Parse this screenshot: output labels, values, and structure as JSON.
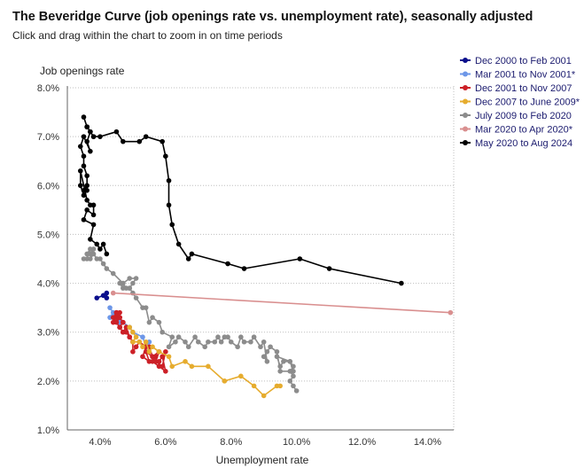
{
  "header": {
    "title": "The Beveridge Curve (job openings rate vs. unemployment rate), seasonally adjusted",
    "subtitle": "Click and drag within the chart to zoom in on time periods"
  },
  "chart_data": {
    "type": "scatter",
    "title": "The Beveridge Curve (job openings rate vs. unemployment rate), seasonally adjusted",
    "subtitle": "Click and drag within the chart to zoom in on time periods",
    "xlabel": "Unemployment rate",
    "ylabel": "Job openings rate",
    "xlim": [
      3.0,
      14.8
    ],
    "ylim": [
      1.0,
      8.0
    ],
    "x_ticks": [
      4,
      6,
      8,
      10,
      12,
      14
    ],
    "y_ticks": [
      1,
      2,
      3,
      4,
      5,
      6,
      7,
      8
    ],
    "x_tick_labels": [
      "4.0%",
      "6.0%",
      "8.0%",
      "10.0%",
      "12.0%",
      "14.0%"
    ],
    "y_tick_labels": [
      "1.0%",
      "2.0%",
      "3.0%",
      "4.0%",
      "5.0%",
      "6.0%",
      "7.0%",
      "8.0%"
    ],
    "grid": "horizontal dotted",
    "legend_position": "top-right",
    "connected_points": true,
    "series": [
      {
        "name": "Dec 2000 to Feb 2001",
        "color": "#0b0f8c",
        "x": [
          3.9,
          4.1,
          4.2,
          4.2
        ],
        "y": [
          3.7,
          3.75,
          3.8,
          3.7
        ]
      },
      {
        "name": "Mar 2001 to Nov 2001*",
        "color": "#6d97e8",
        "x": [
          4.3,
          4.4,
          4.3,
          4.5,
          4.6,
          4.5,
          4.7,
          4.9,
          5.0,
          5.3,
          5.4,
          5.5
        ],
        "y": [
          3.5,
          3.4,
          3.3,
          3.3,
          3.2,
          3.4,
          3.2,
          3.1,
          3.0,
          2.9,
          2.7,
          2.8
        ]
      },
      {
        "name": "Dec 2001 to Nov 2007",
        "color": "#cc2027",
        "x": [
          5.7,
          5.6,
          5.8,
          6.0,
          5.9,
          5.8,
          6.0,
          5.9,
          5.7,
          5.8,
          5.6,
          5.5,
          5.6,
          5.4,
          5.5,
          5.3,
          5.4,
          5.2,
          5.1,
          5.0,
          5.0,
          4.9,
          4.8,
          4.9,
          4.8,
          4.7,
          4.6,
          4.7,
          4.6,
          4.5,
          4.6,
          4.5,
          4.4,
          4.5,
          4.6,
          4.7,
          4.6,
          4.4,
          4.5,
          4.6,
          4.7,
          4.6,
          4.7,
          4.8
        ],
        "y": [
          2.5,
          2.4,
          2.3,
          2.2,
          2.5,
          2.4,
          2.6,
          2.3,
          2.4,
          2.6,
          2.5,
          2.7,
          2.5,
          2.6,
          2.4,
          2.5,
          2.7,
          2.8,
          2.7,
          2.6,
          2.8,
          2.9,
          3.0,
          2.9,
          3.1,
          3.0,
          3.1,
          3.2,
          3.3,
          3.2,
          3.4,
          3.3,
          3.2,
          3.4,
          3.3,
          3.2,
          3.1,
          3.3,
          3.4,
          3.3,
          3.2,
          3.1,
          3.0,
          3.1
        ]
      },
      {
        "name": "Dec 2007 to June 2009*",
        "color": "#e6ac2e",
        "x": [
          4.9,
          5.0,
          5.1,
          5.0,
          5.2,
          5.3,
          5.4,
          5.5,
          5.6,
          5.8,
          6.1,
          6.2,
          6.6,
          6.8,
          7.3,
          7.8,
          8.3,
          8.7,
          9.0,
          9.4,
          9.5
        ],
        "y": [
          3.1,
          3.0,
          2.9,
          2.8,
          2.8,
          2.7,
          2.8,
          2.6,
          2.7,
          2.6,
          2.5,
          2.3,
          2.4,
          2.3,
          2.3,
          2.0,
          2.1,
          1.9,
          1.7,
          1.9,
          1.9
        ]
      },
      {
        "name": "July 2009 to Feb 2020",
        "color": "#8c8c8c",
        "x": [
          10.0,
          9.9,
          9.8,
          9.9,
          9.8,
          9.9,
          9.8,
          9.6,
          9.5,
          9.4,
          9.8,
          9.9,
          9.5,
          9.4,
          9.2,
          9.1,
          9.0,
          9.1,
          9.0,
          8.9,
          8.7,
          8.6,
          8.4,
          8.3,
          8.2,
          8.0,
          7.9,
          7.8,
          7.7,
          7.6,
          7.5,
          7.3,
          7.2,
          7.0,
          6.9,
          6.7,
          6.6,
          6.4,
          6.3,
          6.1,
          6.2,
          5.9,
          5.8,
          5.6,
          5.5,
          5.4,
          5.3,
          5.1,
          5.0,
          4.9,
          4.8,
          4.7,
          4.6,
          4.7,
          4.9,
          5.0,
          5.1,
          4.9,
          4.7,
          4.4,
          4.2,
          4.1,
          4.0,
          3.9,
          3.8,
          3.7,
          3.8,
          3.7,
          3.6,
          3.7,
          3.6,
          3.5
        ],
        "y": [
          1.8,
          1.9,
          2.0,
          2.1,
          2.2,
          2.3,
          2.4,
          2.4,
          2.3,
          2.5,
          2.4,
          2.2,
          2.2,
          2.6,
          2.7,
          2.6,
          2.5,
          2.4,
          2.8,
          2.7,
          2.9,
          2.8,
          2.8,
          2.9,
          2.7,
          2.8,
          2.9,
          2.9,
          2.8,
          2.9,
          2.8,
          2.8,
          2.7,
          2.8,
          2.9,
          2.7,
          2.8,
          2.9,
          2.8,
          2.7,
          2.9,
          3.0,
          3.2,
          3.3,
          3.2,
          3.5,
          3.5,
          3.7,
          3.8,
          3.9,
          3.9,
          4.0,
          4.0,
          3.9,
          3.9,
          4.0,
          4.1,
          4.1,
          4.0,
          4.2,
          4.3,
          4.4,
          4.5,
          4.5,
          4.6,
          4.5,
          4.7,
          4.6,
          4.6,
          4.7,
          4.5,
          4.5
        ]
      },
      {
        "name": "Mar 2020 to Apr 2020*",
        "color": "#d98f8f",
        "x": [
          4.4,
          14.7
        ],
        "y": [
          3.8,
          3.4
        ]
      },
      {
        "name": "May 2020 to Aug 2024",
        "color": "#000000",
        "x": [
          13.2,
          11.0,
          10.1,
          8.4,
          7.9,
          6.8,
          6.7,
          6.4,
          6.2,
          6.1,
          6.1,
          6.0,
          5.9,
          5.4,
          5.2,
          4.7,
          4.5,
          4.0,
          3.8,
          3.7,
          3.6,
          3.6,
          3.5,
          3.6,
          3.8,
          3.7,
          3.6,
          3.7,
          3.5,
          3.4,
          3.5,
          3.5,
          3.6,
          3.6,
          3.6,
          3.5,
          3.5,
          3.4,
          3.4,
          3.6,
          3.7,
          3.8,
          3.8,
          3.6,
          3.5,
          3.8,
          3.7,
          3.9,
          4.0,
          4.1,
          4.2
        ],
        "y": [
          4.0,
          4.3,
          4.5,
          4.3,
          4.4,
          4.6,
          4.5,
          4.8,
          5.2,
          5.6,
          6.1,
          6.6,
          6.9,
          7.0,
          6.9,
          6.9,
          7.1,
          7.0,
          7.0,
          7.1,
          7.2,
          7.2,
          7.4,
          7.2,
          7.0,
          7.1,
          6.9,
          6.7,
          7.0,
          6.8,
          6.6,
          6.4,
          6.2,
          5.9,
          6.0,
          5.9,
          5.8,
          6.0,
          6.3,
          5.7,
          5.6,
          5.6,
          5.4,
          5.5,
          5.3,
          5.2,
          4.9,
          4.8,
          4.7,
          4.8,
          4.6
        ]
      }
    ]
  }
}
